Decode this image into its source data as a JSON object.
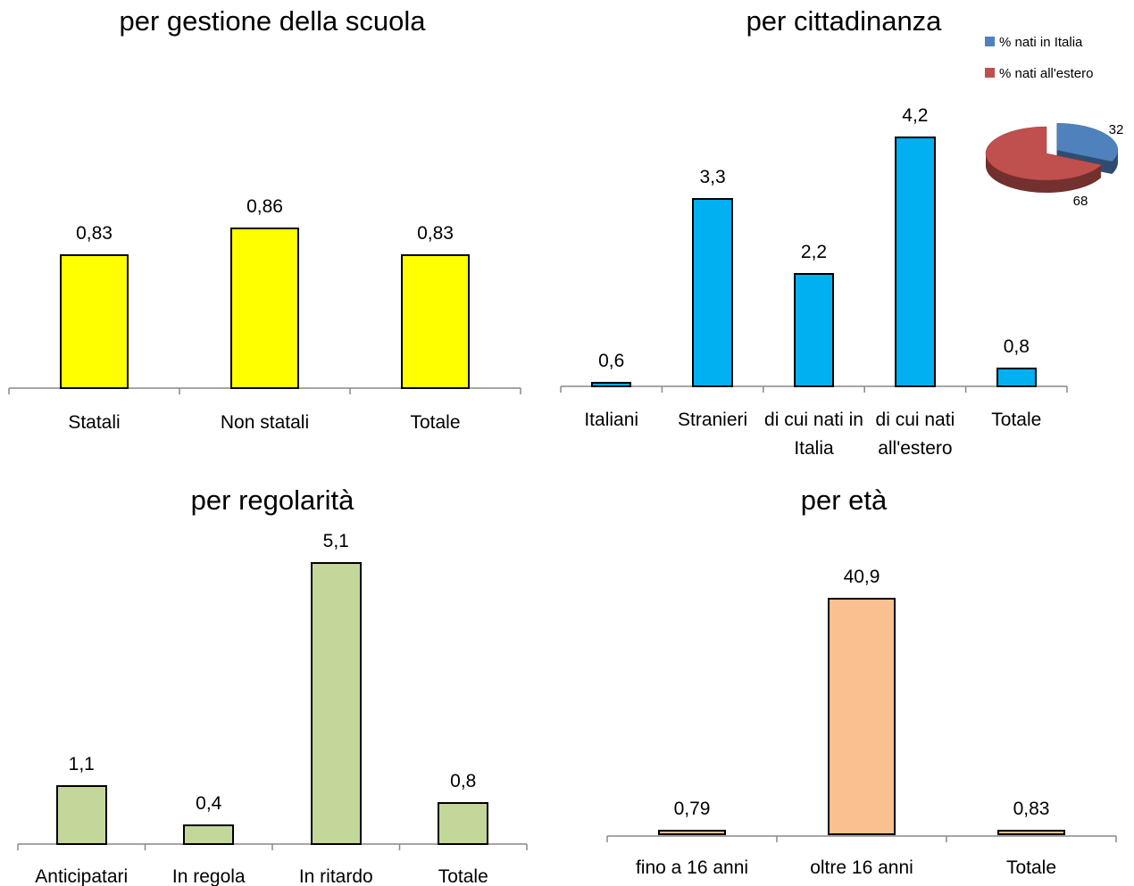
{
  "chart_data": [
    {
      "type": "bar",
      "title": "per gestione della scuola",
      "categories": [
        "Statali",
        "Non statali",
        "Totale"
      ],
      "values": [
        0.83,
        0.86,
        0.83
      ],
      "value_labels": [
        "0,83",
        "0,86",
        "0,83"
      ],
      "color": "#ffff00",
      "ylim": [
        0.68,
        1.0
      ]
    },
    {
      "type": "bar",
      "title": "per cittadinanza",
      "categories": [
        "Italiani",
        "Stranieri",
        "di cui nati in Italia",
        "di cui nati all'estero",
        "Totale"
      ],
      "values": [
        0.6,
        3.3,
        2.2,
        4.2,
        0.8
      ],
      "value_labels": [
        "0,6",
        "3,3",
        "2,2",
        "4,2",
        "0,8"
      ],
      "color": "#00b0f0",
      "ylim": [
        0.53,
        4.8
      ]
    },
    {
      "type": "pie",
      "categories": [
        "% nati in Italia",
        "% nati all'estero"
      ],
      "values": [
        32,
        68
      ],
      "colors": [
        "#4f81bd",
        "#c0504d"
      ]
    },
    {
      "type": "bar",
      "title": "per regolarità",
      "categories": [
        "Anticipatari",
        "In regola",
        "In ritardo",
        "Totale"
      ],
      "values": [
        1.1,
        0.4,
        5.1,
        0.8
      ],
      "value_labels": [
        "1,1",
        "0,4",
        "5,1",
        "0,8"
      ],
      "color": "#c4d79b",
      "ylim": [
        0.05,
        5.6
      ]
    },
    {
      "type": "bar",
      "title": "per età",
      "categories": [
        "fino a 16 anni",
        "oltre 16 anni",
        "Totale"
      ],
      "values": [
        0.79,
        40.9,
        0.83
      ],
      "value_labels": [
        "0,79",
        "40,9",
        "0,83"
      ],
      "color": "#fac090",
      "ylim": [
        -0.3,
        45
      ]
    }
  ]
}
